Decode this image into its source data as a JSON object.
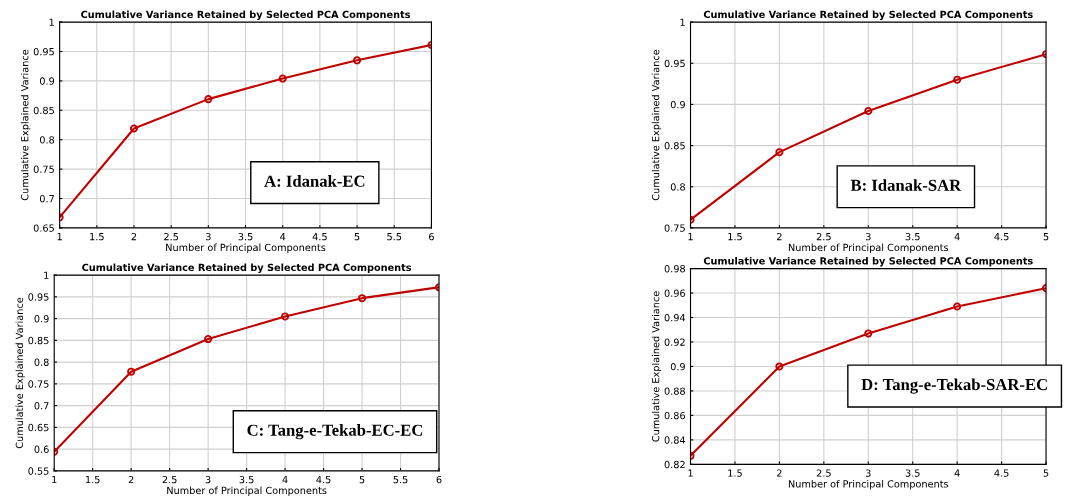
{
  "chart_data": [
    {
      "type": "line",
      "title": "Cumulative Variance Retained by Selected PCA Components",
      "xlabel": "Number of Principal Components",
      "ylabel": "Cumulative Explained Variance",
      "x": [
        1,
        2,
        3,
        4,
        5,
        6
      ],
      "series": [
        {
          "color": "#c00000",
          "values": [
            0.668,
            0.819,
            0.869,
            0.904,
            0.935,
            0.961
          ]
        }
      ],
      "xlim": [
        1,
        6
      ],
      "xticks": [
        1,
        1.5,
        2,
        2.5,
        3,
        3.5,
        4,
        4.5,
        5,
        5.5,
        6
      ],
      "ylim": [
        0.65,
        1
      ],
      "yticks": [
        0.65,
        0.7,
        0.75,
        0.8,
        0.85,
        0.9,
        0.95,
        1
      ],
      "grid": true,
      "marker": "circle",
      "line_style": "solid",
      "annotations": [
        "A: Idanak-EC"
      ]
    },
    {
      "type": "line",
      "title": "Cumulative Variance Retained by Selected PCA Components",
      "xlabel": "Number of Principal Components",
      "ylabel": "Cumulative Explained Variance",
      "x": [
        1,
        2,
        3,
        4,
        5
      ],
      "series": [
        {
          "color": "#c00000",
          "values": [
            0.76,
            0.842,
            0.892,
            0.93,
            0.961
          ]
        }
      ],
      "xlim": [
        1,
        5
      ],
      "xticks": [
        1,
        1.5,
        2,
        2.5,
        3,
        3.5,
        4,
        4.5,
        5
      ],
      "ylim": [
        0.75,
        1
      ],
      "yticks": [
        0.75,
        0.8,
        0.85,
        0.9,
        0.95,
        1
      ],
      "grid": true,
      "marker": "circle",
      "line_style": "solid",
      "annotations": [
        "B: Idanak-SAR"
      ]
    },
    {
      "type": "line",
      "title": "Cumulative Variance Retained by Selected PCA Components",
      "xlabel": "Number of Principal Components",
      "ylabel": "Cumulative Explained Variance",
      "x": [
        1,
        2,
        3,
        4,
        5,
        6
      ],
      "series": [
        {
          "color": "#c00000",
          "values": [
            0.594,
            0.778,
            0.853,
            0.905,
            0.947,
            0.972
          ]
        }
      ],
      "xlim": [
        1,
        6
      ],
      "xticks": [
        1,
        1.5,
        2,
        2.5,
        3,
        3.5,
        4,
        4.5,
        5,
        5.5,
        6
      ],
      "ylim": [
        0.55,
        1
      ],
      "yticks": [
        0.55,
        0.6,
        0.65,
        0.7,
        0.75,
        0.8,
        0.85,
        0.9,
        0.95,
        1
      ],
      "grid": true,
      "marker": "circle",
      "line_style": "solid",
      "annotations": [
        "C: Tang-e-Tekab-EC-EC"
      ]
    },
    {
      "type": "line",
      "title": "Cumulative Variance Retained by Selected PCA Components",
      "xlabel": "Number of Principal Components",
      "ylabel": "Cumulative Explained Variance",
      "x": [
        1,
        2,
        3,
        4,
        5
      ],
      "series": [
        {
          "color": "#c00000",
          "values": [
            0.827,
            0.9,
            0.927,
            0.949,
            0.964
          ]
        }
      ],
      "xlim": [
        1,
        5
      ],
      "xticks": [
        1,
        1.5,
        2,
        2.5,
        3,
        3.5,
        4,
        4.5,
        5
      ],
      "ylim": [
        0.82,
        0.98
      ],
      "yticks": [
        0.82,
        0.84,
        0.86,
        0.88,
        0.9,
        0.92,
        0.94,
        0.96,
        0.98
      ],
      "grid": true,
      "marker": "circle",
      "line_style": "solid",
      "annotations": [
        "D: Tang-e-Tekab-SAR-EC"
      ]
    }
  ]
}
